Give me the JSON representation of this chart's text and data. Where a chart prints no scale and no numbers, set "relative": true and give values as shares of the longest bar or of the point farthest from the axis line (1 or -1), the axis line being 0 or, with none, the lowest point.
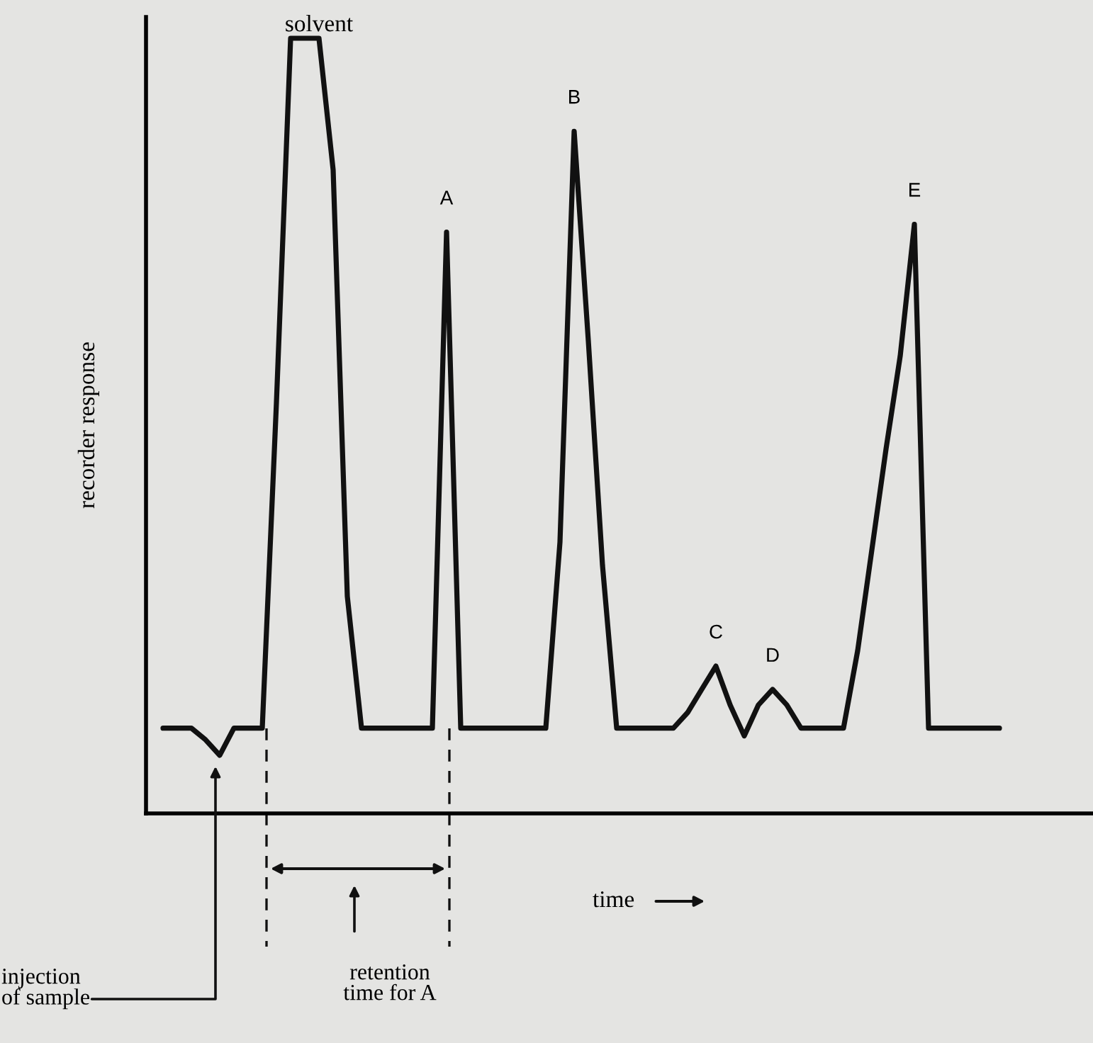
{
  "chart_data": {
    "type": "line",
    "relative": true,
    "xlabel": "time",
    "ylabel": "recorder response",
    "marker": "none",
    "line_style": "solid",
    "categories": [
      null,
      null,
      null,
      null,
      null,
      null,
      null,
      null,
      null,
      null,
      null,
      null,
      null,
      null,
      null,
      null,
      null,
      null,
      null,
      null,
      null,
      null,
      null,
      null,
      null,
      null,
      null,
      null,
      null,
      null,
      null,
      null,
      null,
      null,
      null,
      null,
      null,
      null,
      null,
      null,
      null,
      null,
      null,
      null,
      null,
      null,
      null,
      null,
      null,
      null,
      null,
      null,
      null,
      null,
      null,
      null,
      null,
      null,
      null,
      null
    ],
    "series": [
      {
        "color": "#111111",
        "values": [
          0.11,
          0.11,
          0.11,
          0.095,
          0.075,
          0.11,
          0.11,
          0.11,
          0.53,
          1,
          1,
          1,
          0.83,
          0.28,
          0.11,
          0.11,
          0.11,
          0.11,
          0.11,
          0.11,
          0.75,
          0.11,
          0.11,
          0.11,
          0.11,
          0.11,
          0.11,
          0.11,
          0.35,
          0.88,
          0.61,
          0.32,
          0.11,
          0.11,
          0.11,
          0.11,
          0.11,
          0.13,
          0.16,
          0.19,
          0.14,
          0.1,
          0.14,
          0.16,
          0.14,
          0.11,
          0.11,
          0.11,
          0.11,
          0.21,
          0.34,
          0.47,
          0.59,
          0.76,
          0.11,
          0.11,
          0.11,
          0.11,
          0.11,
          0.11
        ]
      }
    ],
    "annotations": [
      "solvent",
      "A",
      "B",
      "C",
      "D",
      "E",
      "injection\nof sample",
      "retention\ntime for A"
    ]
  }
}
